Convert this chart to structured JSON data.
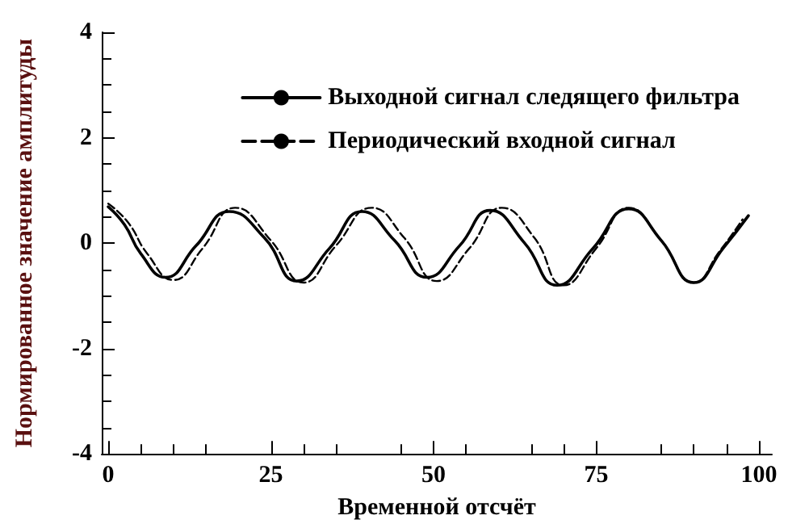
{
  "chart_data": {
    "type": "line",
    "xlabel": "Временной отсчёт",
    "ylabel": "Нормированное значение амплитуды",
    "xlim": [
      -1,
      102
    ],
    "xticks": [
      0,
      25,
      50,
      75,
      100
    ],
    "ylim": [
      -4,
      4
    ],
    "yticks": [
      -4,
      -2,
      0,
      2,
      4
    ],
    "grid": false,
    "legend": "top right",
    "marker": "none",
    "series": [
      {
        "name": "Выходной сигнал следящего фильтра",
        "color": "#000000",
        "line_style": "solid",
        "x": [
          0,
          2.5,
          5,
          8.8,
          13.5,
          18.6,
          24,
          29,
          34,
          39,
          44,
          49,
          54,
          58.7,
          64,
          69,
          74.5,
          80,
          85,
          90,
          94.5,
          98.4
        ],
        "values": [
          0.69,
          0.35,
          -0.2,
          -0.65,
          -0.05,
          0.6,
          0.1,
          -0.72,
          -0.1,
          0.6,
          0.05,
          -0.65,
          -0.05,
          0.62,
          0,
          -0.8,
          -0.1,
          0.65,
          0.05,
          -0.75,
          -0.1,
          0.52
        ]
      },
      {
        "name": "Периодический входной сигнал",
        "color": "#000000",
        "line_style": "dashed",
        "x": [
          0,
          3,
          6,
          10,
          14.5,
          19.5,
          25,
          30,
          35,
          40.5,
          45.5,
          50.5,
          55.5,
          60.5,
          65.5,
          70,
          75,
          80,
          85,
          90,
          94,
          97.5
        ],
        "values": [
          0.75,
          0.4,
          -0.2,
          -0.7,
          -0.1,
          0.67,
          0.05,
          -0.75,
          -0.05,
          0.67,
          0.1,
          -0.72,
          -0.1,
          0.67,
          0.1,
          -0.8,
          -0.1,
          0.67,
          0.05,
          -0.75,
          -0.15,
          0.45
        ]
      }
    ]
  }
}
